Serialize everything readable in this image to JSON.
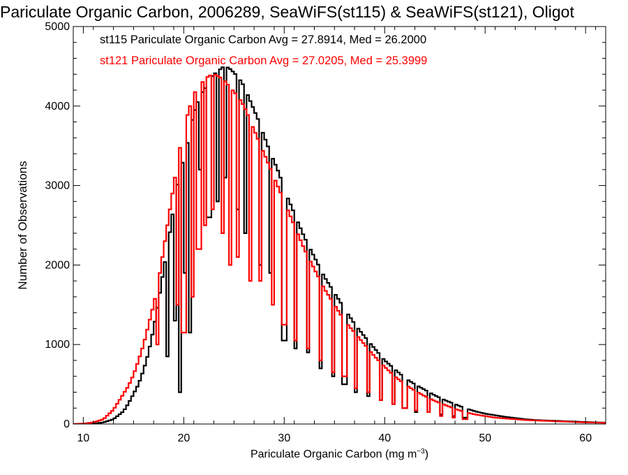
{
  "chart_data": {
    "type": "histogram-step",
    "title": "Pariculate Organic Carbon, 2006289, SeaWiFS(st115) & SeaWiFS(st121), Oligot",
    "xlabel_main": "Pariculate Organic Carbon (mg m",
    "xlabel_sup": "−3",
    "xlabel_close": ")",
    "ylabel": "Number of Observations",
    "xlim": [
      9,
      62
    ],
    "ylim": [
      0,
      5000
    ],
    "xticks": [
      10,
      20,
      30,
      40,
      50,
      60
    ],
    "yticks": [
      0,
      1000,
      2000,
      3000,
      4000,
      5000
    ],
    "grid": false,
    "legend_placement": "top-left",
    "bin_width": 0.25,
    "series": [
      {
        "name": "st115 Pariculate Organic Carbon Avg = 27.8914, Med = 26.2000",
        "color": "#000000",
        "points": [
          [
            9,
            0
          ],
          [
            11,
            5
          ],
          [
            12,
            20
          ],
          [
            13,
            60
          ],
          [
            13.5,
            110
          ],
          [
            14,
            160
          ],
          [
            14.5,
            260
          ],
          [
            15,
            380
          ],
          [
            15.5,
            500
          ],
          [
            16,
            680
          ],
          [
            16.5,
            900
          ],
          [
            17,
            1200
          ],
          [
            17.5,
            1550
          ],
          [
            18,
            1950
          ],
          [
            18.5,
            2300
          ],
          [
            19,
            2750
          ],
          [
            19.5,
            3100
          ],
          [
            20,
            3350
          ],
          [
            20.5,
            3600
          ],
          [
            21,
            3900
          ],
          [
            21.5,
            4100
          ],
          [
            22,
            4200
          ],
          [
            22.5,
            4300
          ],
          [
            23,
            4400
          ],
          [
            23.5,
            4450
          ],
          [
            24,
            4500
          ],
          [
            24.5,
            4480
          ],
          [
            25,
            4420
          ],
          [
            25.5,
            4350
          ],
          [
            26,
            4250
          ],
          [
            26.5,
            4100
          ],
          [
            27,
            3950
          ],
          [
            27.5,
            3800
          ],
          [
            28,
            3620
          ],
          [
            28.5,
            3450
          ],
          [
            29,
            3300
          ],
          [
            29.5,
            3150
          ],
          [
            30,
            2950
          ],
          [
            30.5,
            2800
          ],
          [
            31,
            2650
          ],
          [
            31.5,
            2500
          ],
          [
            32,
            2350
          ],
          [
            33,
            2100
          ],
          [
            34,
            1850
          ],
          [
            35,
            1650
          ],
          [
            36,
            1450
          ],
          [
            37,
            1260
          ],
          [
            38,
            1100
          ],
          [
            39,
            950
          ],
          [
            40,
            800
          ],
          [
            41,
            690
          ],
          [
            42,
            580
          ],
          [
            43,
            500
          ],
          [
            44,
            430
          ],
          [
            45,
            360
          ],
          [
            46,
            300
          ],
          [
            47,
            250
          ],
          [
            48,
            200
          ],
          [
            49,
            160
          ],
          [
            50,
            130
          ],
          [
            51,
            110
          ],
          [
            52,
            90
          ],
          [
            53,
            75
          ],
          [
            54,
            60
          ],
          [
            55,
            50
          ],
          [
            56,
            45
          ],
          [
            57,
            40
          ],
          [
            58,
            35
          ],
          [
            59,
            30
          ],
          [
            60,
            25
          ],
          [
            61,
            20
          ],
          [
            62,
            18
          ]
        ],
        "dips": [
          [
            18.3,
            850
          ],
          [
            19.2,
            1300
          ],
          [
            19.6,
            400
          ],
          [
            20.1,
            1900
          ],
          [
            20.6,
            1150
          ],
          [
            21.6,
            3200
          ],
          [
            22.5,
            2600
          ],
          [
            23.3,
            2800
          ],
          [
            24.1,
            3100
          ],
          [
            25.3,
            2700
          ],
          [
            26.2,
            2400
          ],
          [
            27.6,
            2000
          ],
          [
            28.6,
            1900
          ],
          [
            30.0,
            1050
          ],
          [
            31.2,
            950
          ],
          [
            32.4,
            900
          ],
          [
            33.6,
            700
          ],
          [
            34.8,
            600
          ],
          [
            36.0,
            500
          ],
          [
            37.2,
            400
          ],
          [
            38.4,
            350
          ],
          [
            39.6,
            300
          ],
          [
            40.8,
            250
          ],
          [
            42.0,
            200
          ],
          [
            43.2,
            150
          ],
          [
            44.4,
            150
          ],
          [
            45.6,
            120
          ],
          [
            46.8,
            100
          ],
          [
            48.0,
            80
          ]
        ]
      },
      {
        "name": "st121 Pariculate Organic Carbon Avg = 27.0205, Med = 25.3999",
        "color": "#ff0000",
        "points": [
          [
            9,
            0
          ],
          [
            10,
            5
          ],
          [
            11,
            20
          ],
          [
            12,
            60
          ],
          [
            13,
            180
          ],
          [
            13.5,
            280
          ],
          [
            14,
            380
          ],
          [
            14.5,
            480
          ],
          [
            15,
            620
          ],
          [
            15.5,
            800
          ],
          [
            16,
            1000
          ],
          [
            16.5,
            1250
          ],
          [
            17,
            1500
          ],
          [
            17.5,
            1800
          ],
          [
            18,
            2200
          ],
          [
            18.5,
            2600
          ],
          [
            19,
            3000
          ],
          [
            19.5,
            3400
          ],
          [
            20,
            3700
          ],
          [
            20.5,
            3950
          ],
          [
            21,
            4150
          ],
          [
            21.5,
            4250
          ],
          [
            22,
            4320
          ],
          [
            22.5,
            4380
          ],
          [
            23,
            4400
          ],
          [
            23.5,
            4370
          ],
          [
            24,
            4330
          ],
          [
            24.5,
            4250
          ],
          [
            25,
            4180
          ],
          [
            25.5,
            4100
          ],
          [
            26,
            4000
          ],
          [
            26.5,
            3850
          ],
          [
            27,
            3700
          ],
          [
            27.5,
            3550
          ],
          [
            28,
            3400
          ],
          [
            28.5,
            3250
          ],
          [
            29,
            3100
          ],
          [
            29.5,
            2950
          ],
          [
            30,
            2800
          ],
          [
            30.5,
            2650
          ],
          [
            31,
            2500
          ],
          [
            31.5,
            2350
          ],
          [
            32,
            2200
          ],
          [
            33,
            1950
          ],
          [
            34,
            1700
          ],
          [
            35,
            1500
          ],
          [
            36,
            1300
          ],
          [
            37,
            1150
          ],
          [
            38,
            1000
          ],
          [
            39,
            850
          ],
          [
            40,
            720
          ],
          [
            41,
            600
          ],
          [
            42,
            500
          ],
          [
            43,
            420
          ],
          [
            44,
            350
          ],
          [
            45,
            290
          ],
          [
            46,
            240
          ],
          [
            47,
            190
          ],
          [
            48,
            150
          ],
          [
            49,
            120
          ],
          [
            50,
            100
          ],
          [
            51,
            80
          ],
          [
            52,
            70
          ],
          [
            53,
            60
          ],
          [
            54,
            50
          ],
          [
            55,
            45
          ],
          [
            56,
            40
          ],
          [
            57,
            35
          ],
          [
            58,
            30
          ],
          [
            59,
            25
          ],
          [
            60,
            20
          ],
          [
            61,
            18
          ],
          [
            62,
            15
          ]
        ],
        "dips": [
          [
            17.3,
            1000
          ],
          [
            19.3,
            1500
          ],
          [
            20.0,
            1150
          ],
          [
            20.9,
            1600
          ],
          [
            21.5,
            2200
          ],
          [
            22.2,
            2500
          ],
          [
            22.9,
            2700
          ],
          [
            23.8,
            2400
          ],
          [
            24.6,
            2000
          ],
          [
            25.4,
            2100
          ],
          [
            26.6,
            1800
          ],
          [
            27.6,
            1800
          ],
          [
            28.8,
            1500
          ],
          [
            30.0,
            1250
          ],
          [
            31.2,
            1050
          ],
          [
            32.4,
            950
          ],
          [
            33.6,
            800
          ],
          [
            34.8,
            650
          ],
          [
            36.0,
            600
          ],
          [
            37.2,
            450
          ],
          [
            38.4,
            400
          ],
          [
            39.6,
            300
          ],
          [
            40.8,
            250
          ],
          [
            42.0,
            200
          ],
          [
            43.2,
            170
          ],
          [
            44.4,
            150
          ],
          [
            45.6,
            100
          ],
          [
            46.8,
            80
          ],
          [
            48.0,
            60
          ]
        ]
      }
    ]
  }
}
